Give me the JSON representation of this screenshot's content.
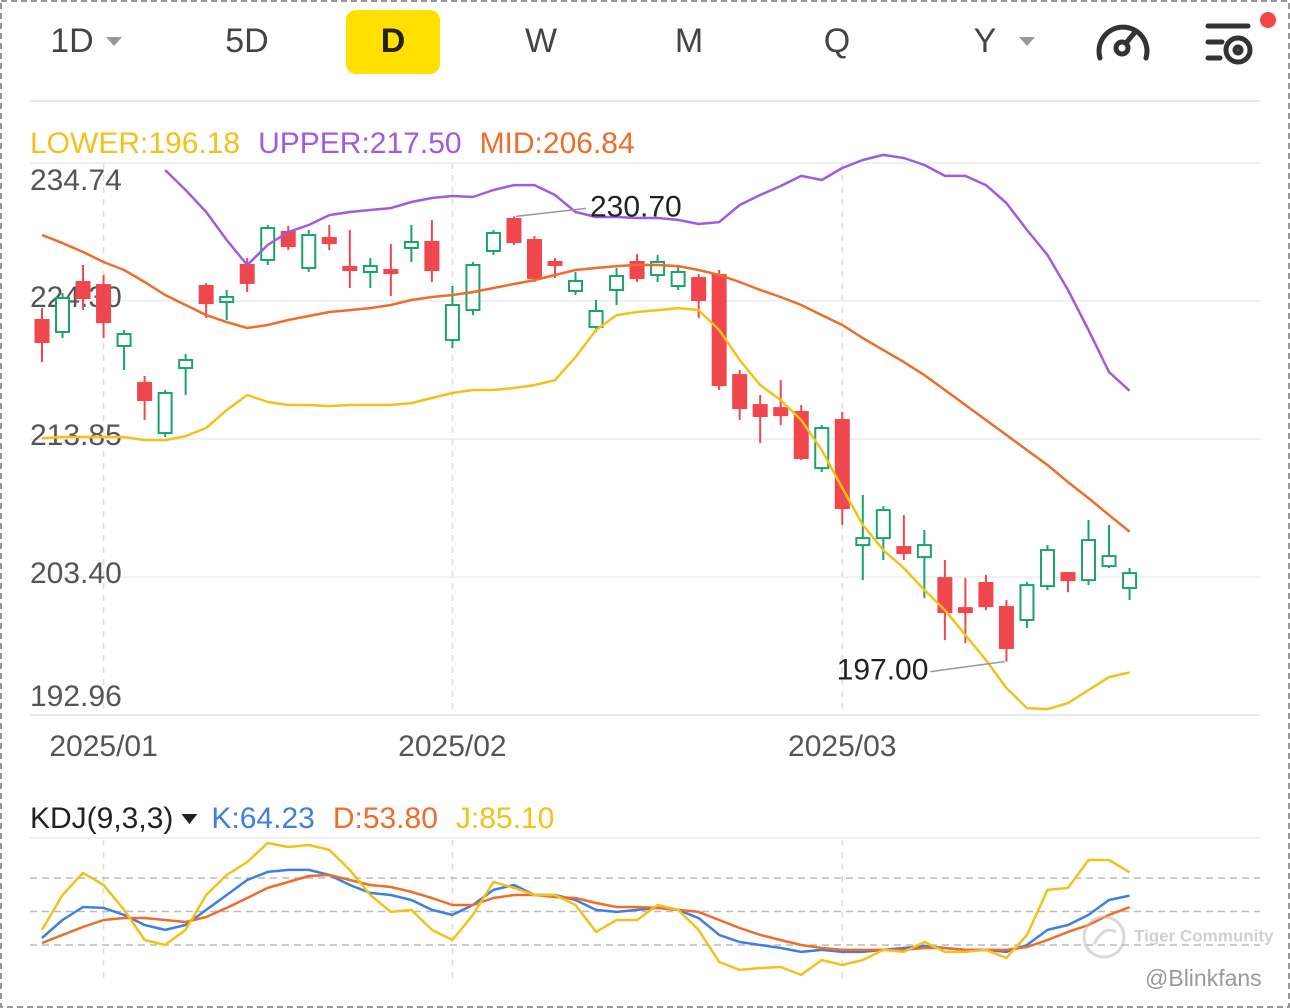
{
  "toolbar": {
    "tabs": [
      "1D",
      "5D",
      "D",
      "W",
      "M",
      "Q",
      "Y"
    ],
    "selected": "D"
  },
  "chart_data": [
    {
      "type": "candlestick",
      "categories": [
        null,
        null,
        null,
        "2025/01",
        null,
        null,
        null,
        null,
        null,
        null,
        null,
        null,
        null,
        null,
        null,
        null,
        null,
        null,
        null,
        null,
        "2025/02",
        null,
        null,
        null,
        null,
        null,
        null,
        null,
        null,
        null,
        null,
        null,
        null,
        null,
        null,
        null,
        null,
        null,
        null,
        "2025/03",
        null,
        null,
        null,
        null,
        null,
        null,
        null,
        null,
        null,
        null,
        null,
        null,
        null,
        null
      ],
      "open": [
        222.86,
        221.95,
        225.73,
        225.5,
        220.89,
        218.09,
        214.3,
        219.22,
        225.43,
        224.22,
        227.02,
        227.4,
        229.52,
        226.79,
        229.06,
        226.87,
        226.49,
        226.64,
        228.31,
        228.76,
        221.34,
        223.61,
        228.08,
        230.5,
        228.91,
        227.25,
        225.05,
        222.33,
        225.13,
        227.25,
        226.26,
        225.43,
        226.03,
        226.26,
        218.69,
        216.42,
        216.19,
        215.89,
        211.65,
        215.29,
        205.82,
        206.35,
        205.67,
        204.91,
        203.32,
        201.05,
        202.95,
        201.13,
        200.15,
        202.72,
        203.7,
        203.17,
        204.23,
        202.57
      ],
      "high": [
        223.76,
        224.9,
        227.02,
        226.26,
        222.1,
        218.62,
        217.56,
        220.28,
        225.66,
        225.13,
        227.55,
        230.05,
        229.97,
        229.67,
        230.05,
        229.67,
        227.55,
        228.61,
        230.05,
        230.43,
        225.43,
        227.25,
        229.67,
        230.7,
        229.21,
        227.55,
        226.49,
        224.37,
        226.79,
        227.85,
        227.78,
        227.02,
        226.34,
        226.64,
        219.07,
        217.18,
        218.31,
        216.42,
        214.91,
        215.89,
        209.61,
        208.77,
        208.09,
        206.96,
        204.69,
        203.32,
        203.55,
        201.66,
        203.02,
        205.82,
        203.78,
        207.72,
        207.34,
        204.08
      ],
      "low": [
        219.68,
        221.49,
        223.61,
        221.49,
        219.07,
        215.29,
        214.0,
        217.18,
        223.01,
        222.86,
        224.97,
        227.02,
        228.15,
        226.49,
        228.15,
        225.28,
        225.28,
        224.67,
        227.25,
        225.73,
        220.74,
        223.23,
        227.78,
        228.53,
        225.73,
        226.03,
        224.75,
        221.95,
        223.99,
        225.73,
        225.73,
        225.13,
        223.01,
        217.56,
        215.29,
        213.54,
        214.91,
        212.26,
        211.35,
        207.34,
        203.17,
        204.69,
        204.69,
        201.81,
        198.63,
        198.4,
        200.9,
        197.0,
        199.54,
        202.42,
        202.26,
        202.79,
        204.08,
        201.66
      ],
      "close": [
        221.19,
        224.52,
        224.52,
        222.7,
        221.8,
        216.8,
        217.33,
        219.83,
        224.14,
        224.6,
        225.66,
        229.82,
        228.46,
        229.29,
        228.68,
        226.64,
        226.94,
        226.41,
        228.76,
        226.64,
        223.99,
        227.02,
        229.44,
        228.76,
        226.03,
        227.02,
        225.81,
        223.54,
        226.19,
        226.03,
        227.25,
        226.49,
        224.37,
        217.93,
        216.19,
        215.59,
        215.66,
        212.41,
        214.68,
        208.62,
        206.35,
        208.47,
        205.22,
        205.82,
        200.75,
        200.75,
        201.2,
        198.03,
        202.79,
        205.44,
        203.17,
        206.2,
        204.99,
        203.7
      ],
      "up_color": "#1aa36a",
      "down_color": "#f0464e",
      "ylim": [
        192.96,
        234.74
      ],
      "yticks": [
        234.74,
        224.3,
        213.85,
        203.4,
        192.96
      ],
      "ytick_labels": [
        "234.74",
        "224.30",
        "213.85",
        "203.40",
        "192.96"
      ],
      "overlays": [
        {
          "name": "LOWER:196.18",
          "color": "#f2c21b",
          "values": [
            213.92,
            214.0,
            214.0,
            214.0,
            214.0,
            213.77,
            213.77,
            214.07,
            214.68,
            216.04,
            217.18,
            216.65,
            216.42,
            216.42,
            216.34,
            216.42,
            216.42,
            216.42,
            216.57,
            216.95,
            217.33,
            217.56,
            217.56,
            217.71,
            217.93,
            218.31,
            220.05,
            222.1,
            223.23,
            223.46,
            223.61,
            223.76,
            223.61,
            222.1,
            219.83,
            217.93,
            216.8,
            215.29,
            213.01,
            210.14,
            207.34,
            205.44,
            204.08,
            202.42,
            200.9,
            199.01,
            197.12,
            195.0,
            193.48,
            193.4,
            193.86,
            194.85,
            195.83,
            196.18
          ]
        },
        {
          "name": "UPPER:217.50",
          "color": "#a05ce0",
          "values": [
            null,
            null,
            null,
            null,
            null,
            null,
            234.21,
            232.7,
            231.03,
            228.91,
            227.02,
            228.53,
            229.52,
            230.05,
            230.8,
            231.03,
            231.18,
            231.33,
            231.79,
            232.09,
            232.24,
            232.17,
            232.7,
            233.07,
            233.07,
            232.32,
            231.03,
            230.65,
            230.65,
            230.58,
            230.58,
            230.43,
            230.12,
            230.27,
            231.56,
            232.32,
            233.0,
            233.76,
            233.45,
            234.36,
            234.97,
            235.35,
            235.12,
            234.59,
            233.76,
            233.76,
            233.07,
            231.71,
            229.67,
            227.78,
            225.13,
            222.1,
            218.92,
            217.5
          ]
        },
        {
          "name": "MID:206.84",
          "color": "#ee6d2a",
          "values": [
            229.29,
            228.68,
            228.0,
            227.25,
            226.64,
            225.73,
            224.75,
            223.99,
            223.23,
            222.7,
            222.25,
            222.48,
            222.86,
            223.16,
            223.46,
            223.61,
            223.76,
            223.99,
            224.37,
            224.6,
            224.75,
            224.97,
            225.28,
            225.58,
            225.88,
            226.26,
            226.64,
            226.79,
            226.94,
            227.02,
            227.02,
            226.94,
            226.64,
            226.26,
            225.73,
            225.13,
            224.6,
            223.99,
            223.23,
            222.48,
            221.49,
            220.58,
            219.68,
            218.69,
            217.56,
            216.42,
            215.29,
            214.15,
            213.01,
            211.88,
            210.59,
            209.38,
            208.09,
            206.84
          ]
        }
      ],
      "annotations": [
        {
          "field": "high",
          "index": 23,
          "label": "230.70"
        },
        {
          "field": "low",
          "index": 47,
          "label": "197.00"
        }
      ]
    },
    {
      "type": "line",
      "title": "KDJ(9,3,3)",
      "ylim": [
        -10,
        114
      ],
      "levels": [
        20,
        50,
        80
      ],
      "series": [
        {
          "name": "K:64.23",
          "color": "#3f7fe0",
          "values": [
            26.3,
            42.4,
            54.0,
            53.2,
            46.9,
            37.9,
            33.5,
            37.9,
            51.4,
            64.8,
            78.2,
            85.4,
            87.2,
            87.2,
            82.7,
            73.7,
            66.6,
            64.8,
            60.3,
            51.4,
            46.9,
            55.8,
            69.3,
            73.7,
            64.8,
            64.8,
            60.3,
            51.4,
            49.6,
            51.4,
            53.2,
            51.4,
            44.2,
            29.0,
            22.7,
            20.0,
            17.3,
            13.8,
            15.6,
            13.8,
            13.8,
            15.6,
            17.3,
            19.1,
            17.3,
            15.6,
            15.6,
            13.8,
            20.0,
            33.5,
            37.9,
            46.9,
            60.3,
            64.23
          ]
        },
        {
          "name": "D:53.80",
          "color": "#ee6d2a",
          "values": [
            21.8,
            29.0,
            36.1,
            42.4,
            44.2,
            44.2,
            42.4,
            40.6,
            45.1,
            53.2,
            62.1,
            71.1,
            76.4,
            81.8,
            82.7,
            78.2,
            73.7,
            71.9,
            67.5,
            62.1,
            55.8,
            55.8,
            62.1,
            64.8,
            64.8,
            63.0,
            62.1,
            57.6,
            54.0,
            54.0,
            53.2,
            51.4,
            49.6,
            42.4,
            35.2,
            29.0,
            24.5,
            20.0,
            17.3,
            15.6,
            15.6,
            15.6,
            15.6,
            17.3,
            17.3,
            15.6,
            15.6,
            15.6,
            18.2,
            24.5,
            31.7,
            37.9,
            46.9,
            53.8
          ]
        },
        {
          "name": "J:85.10",
          "color": "#f2c21b",
          "values": [
            33.5,
            64.8,
            84.5,
            73.7,
            51.4,
            24.5,
            20.0,
            33.5,
            64.8,
            82.7,
            94.3,
            111.3,
            107.7,
            109.5,
            105.1,
            87.2,
            64.8,
            49.6,
            51.4,
            33.5,
            24.5,
            46.9,
            76.4,
            71.1,
            64.8,
            64.8,
            55.8,
            31.7,
            42.4,
            42.4,
            55.8,
            51.4,
            33.5,
            4.8,
            -2.3,
            -0.6,
            0.3,
            -6.8,
            6.6,
            2.1,
            6.6,
            15.6,
            13.8,
            22.7,
            13.8,
            13.8,
            15.6,
            8.4,
            29.0,
            69.3,
            71.1,
            96.1,
            96.1,
            85.1
          ]
        }
      ]
    }
  ],
  "watermark": {
    "brand": "Tiger Community",
    "user": "@Blinkfans"
  }
}
